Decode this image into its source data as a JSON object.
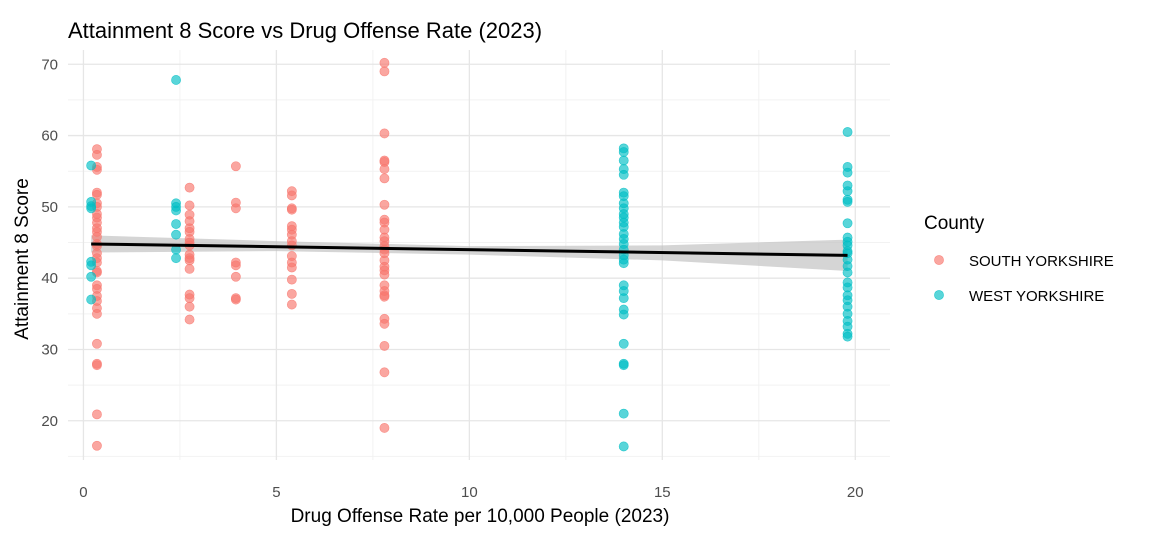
{
  "chart_data": {
    "type": "scatter",
    "title": "Attainment 8 Score vs Drug Offense Rate (2023)",
    "xlabel": "Drug Offense Rate per 10,000 People (2023)",
    "ylabel": "Attainment 8 Score",
    "xlim": [
      -0.4,
      20.9
    ],
    "ylim": [
      14.5,
      72.0
    ],
    "xticks": [
      0,
      5,
      10,
      15,
      20
    ],
    "yticks": [
      20,
      30,
      40,
      50,
      60,
      70
    ],
    "grid": true,
    "legend": {
      "title": "County",
      "position": "right"
    },
    "series": [
      {
        "name": "SOUTH YORKSHIRE",
        "color": "#F8766D",
        "points": [
          [
            0.35,
            58.1
          ],
          [
            0.35,
            57.3
          ],
          [
            0.35,
            55.6
          ],
          [
            0.35,
            55.2
          ],
          [
            0.35,
            52.0
          ],
          [
            0.35,
            51.7
          ],
          [
            0.35,
            50.5
          ],
          [
            0.35,
            50.0
          ],
          [
            0.35,
            49.0
          ],
          [
            0.35,
            48.5
          ],
          [
            0.35,
            47.8
          ],
          [
            0.35,
            47.0
          ],
          [
            0.35,
            46.5
          ],
          [
            0.35,
            45.8
          ],
          [
            0.35,
            44.8
          ],
          [
            0.35,
            44.5
          ],
          [
            0.35,
            43.5
          ],
          [
            0.35,
            42.8
          ],
          [
            0.35,
            42.2
          ],
          [
            0.35,
            41.0
          ],
          [
            0.35,
            40.8
          ],
          [
            0.35,
            39.0
          ],
          [
            0.35,
            38.5
          ],
          [
            0.35,
            37.5
          ],
          [
            0.35,
            36.8
          ],
          [
            0.35,
            35.8
          ],
          [
            0.35,
            35.0
          ],
          [
            0.35,
            30.8
          ],
          [
            0.35,
            28.0
          ],
          [
            0.35,
            27.8
          ],
          [
            0.35,
            20.9
          ],
          [
            0.35,
            16.5
          ],
          [
            2.75,
            52.7
          ],
          [
            2.75,
            50.2
          ],
          [
            2.75,
            48.9
          ],
          [
            2.75,
            48.0
          ],
          [
            2.75,
            47.0
          ],
          [
            2.75,
            46.5
          ],
          [
            2.75,
            45.5
          ],
          [
            2.75,
            45.0
          ],
          [
            2.75,
            44.6
          ],
          [
            2.75,
            43.3
          ],
          [
            2.75,
            42.8
          ],
          [
            2.75,
            42.5
          ],
          [
            2.75,
            41.3
          ],
          [
            2.75,
            37.7
          ],
          [
            2.75,
            37.2
          ],
          [
            2.75,
            36.0
          ],
          [
            2.75,
            34.2
          ],
          [
            3.95,
            55.7
          ],
          [
            3.95,
            50.6
          ],
          [
            3.95,
            49.8
          ],
          [
            3.95,
            42.2
          ],
          [
            3.95,
            41.8
          ],
          [
            3.95,
            40.2
          ],
          [
            3.95,
            37.2
          ],
          [
            3.95,
            37.0
          ],
          [
            5.4,
            52.2
          ],
          [
            5.4,
            51.6
          ],
          [
            5.4,
            49.8
          ],
          [
            5.4,
            49.6
          ],
          [
            5.4,
            47.3
          ],
          [
            5.4,
            46.8
          ],
          [
            5.4,
            46.1
          ],
          [
            5.4,
            45.2
          ],
          [
            5.4,
            44.6
          ],
          [
            5.4,
            43.1
          ],
          [
            5.4,
            42.2
          ],
          [
            5.4,
            41.5
          ],
          [
            5.4,
            39.8
          ],
          [
            5.4,
            37.8
          ],
          [
            5.4,
            36.3
          ],
          [
            7.8,
            70.2
          ],
          [
            7.8,
            69.0
          ],
          [
            7.8,
            60.3
          ],
          [
            7.8,
            56.5
          ],
          [
            7.8,
            56.3
          ],
          [
            7.8,
            55.3
          ],
          [
            7.8,
            54.0
          ],
          [
            7.8,
            50.3
          ],
          [
            7.8,
            48.2
          ],
          [
            7.8,
            47.8
          ],
          [
            7.8,
            46.8
          ],
          [
            7.8,
            45.7
          ],
          [
            7.8,
            45.2
          ],
          [
            7.8,
            44.5
          ],
          [
            7.8,
            44.0
          ],
          [
            7.8,
            43.5
          ],
          [
            7.8,
            42.5
          ],
          [
            7.8,
            41.6
          ],
          [
            7.8,
            41.1
          ],
          [
            7.8,
            40.5
          ],
          [
            7.8,
            39.0
          ],
          [
            7.8,
            38.2
          ],
          [
            7.8,
            37.6
          ],
          [
            7.8,
            37.4
          ],
          [
            7.8,
            34.3
          ],
          [
            7.8,
            33.6
          ],
          [
            7.8,
            30.5
          ],
          [
            7.8,
            26.8
          ],
          [
            7.8,
            19.0
          ]
        ]
      },
      {
        "name": "WEST YORKSHIRE",
        "color": "#00BFC4",
        "points": [
          [
            0.2,
            55.8
          ],
          [
            0.2,
            50.7
          ],
          [
            0.2,
            50.1
          ],
          [
            0.2,
            49.8
          ],
          [
            0.2,
            42.3
          ],
          [
            0.2,
            41.8
          ],
          [
            0.2,
            40.2
          ],
          [
            0.2,
            37.0
          ],
          [
            2.4,
            67.8
          ],
          [
            2.4,
            50.5
          ],
          [
            2.4,
            50.0
          ],
          [
            2.4,
            49.5
          ],
          [
            2.4,
            47.6
          ],
          [
            2.4,
            46.1
          ],
          [
            2.4,
            44.0
          ],
          [
            2.4,
            42.8
          ],
          [
            14.0,
            58.2
          ],
          [
            14.0,
            57.7
          ],
          [
            14.0,
            56.5
          ],
          [
            14.0,
            55.3
          ],
          [
            14.0,
            54.5
          ],
          [
            14.0,
            52.0
          ],
          [
            14.0,
            51.5
          ],
          [
            14.0,
            50.5
          ],
          [
            14.0,
            49.8
          ],
          [
            14.0,
            49.0
          ],
          [
            14.0,
            48.5
          ],
          [
            14.0,
            47.8
          ],
          [
            14.0,
            47.2
          ],
          [
            14.0,
            46.2
          ],
          [
            14.0,
            45.5
          ],
          [
            14.0,
            44.8
          ],
          [
            14.0,
            44.0
          ],
          [
            14.0,
            43.2
          ],
          [
            14.0,
            42.6
          ],
          [
            14.0,
            42.1
          ],
          [
            14.0,
            39.0
          ],
          [
            14.0,
            38.2
          ],
          [
            14.0,
            37.2
          ],
          [
            14.0,
            35.6
          ],
          [
            14.0,
            34.9
          ],
          [
            14.0,
            30.8
          ],
          [
            14.0,
            28.0
          ],
          [
            14.0,
            27.8
          ],
          [
            14.0,
            21.0
          ],
          [
            14.0,
            16.4
          ],
          [
            19.8,
            60.5
          ],
          [
            19.8,
            55.6
          ],
          [
            19.8,
            54.8
          ],
          [
            19.8,
            53.0
          ],
          [
            19.8,
            52.2
          ],
          [
            19.8,
            51.0
          ],
          [
            19.8,
            50.7
          ],
          [
            19.8,
            47.7
          ],
          [
            19.8,
            45.7
          ],
          [
            19.8,
            45.1
          ],
          [
            19.8,
            44.6
          ],
          [
            19.8,
            43.8
          ],
          [
            19.8,
            43.5
          ],
          [
            19.8,
            42.6
          ],
          [
            19.8,
            41.7
          ],
          [
            19.8,
            40.8
          ],
          [
            19.8,
            39.4
          ],
          [
            19.8,
            38.7
          ],
          [
            19.8,
            37.6
          ],
          [
            19.8,
            36.9
          ],
          [
            19.8,
            36.0
          ],
          [
            19.8,
            35.0
          ],
          [
            19.8,
            34.0
          ],
          [
            19.8,
            33.2
          ],
          [
            19.8,
            32.2
          ],
          [
            19.8,
            31.8
          ]
        ]
      }
    ],
    "fit": {
      "color": "#000000",
      "band_color": "#BFBFBF",
      "points": [
        [
          0.2,
          44.8
        ],
        [
          19.8,
          43.2
        ]
      ],
      "band": [
        {
          "x": 0.2,
          "lo": 43.6,
          "hi": 46.0
        },
        {
          "x": 5.0,
          "lo": 43.8,
          "hi": 45.2
        },
        {
          "x": 10.0,
          "lo": 43.3,
          "hi": 44.5
        },
        {
          "x": 15.0,
          "lo": 42.5,
          "hi": 44.6
        },
        {
          "x": 19.8,
          "lo": 41.0,
          "hi": 45.4
        }
      ]
    }
  }
}
